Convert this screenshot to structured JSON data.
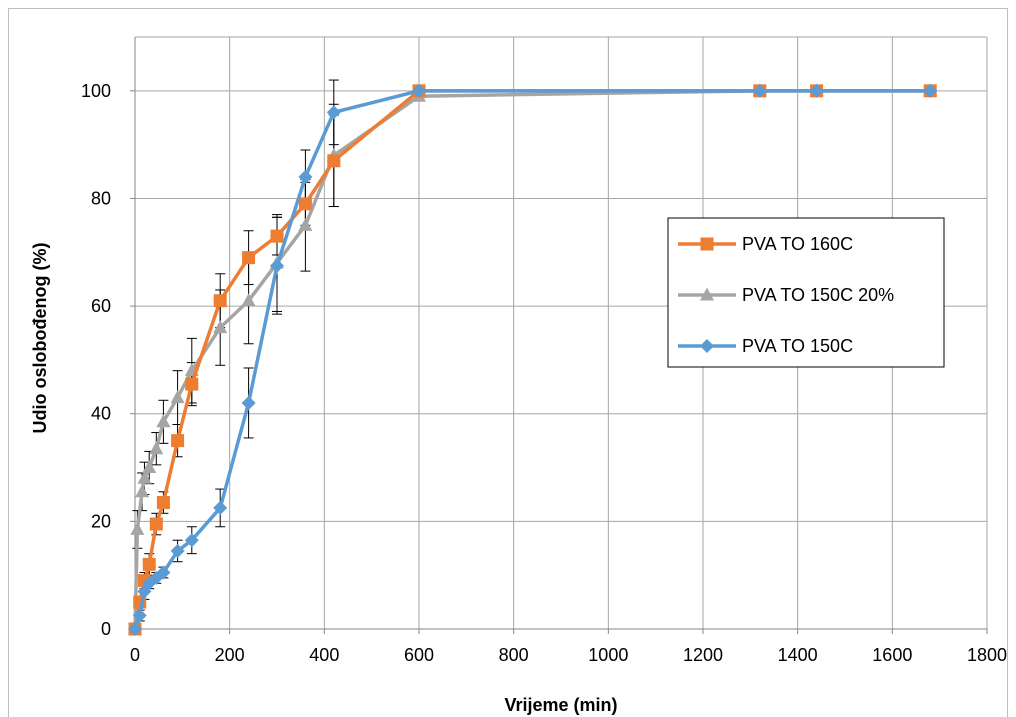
{
  "chart_data": {
    "type": "line",
    "title": "",
    "xlabel": "Vrijeme (min)",
    "ylabel": "Udio oslobođenog (%)",
    "xlim": [
      0,
      1800
    ],
    "ylim": [
      0,
      110
    ],
    "x_ticks": [
      0,
      200,
      400,
      600,
      800,
      1000,
      1200,
      1400,
      1600,
      1800
    ],
    "x_tick_labels": [
      "0",
      "200",
      "400",
      "600",
      "800",
      "1000",
      "1200",
      "1400",
      "1600",
      "1800"
    ],
    "y_ticks": [
      0,
      20,
      40,
      60,
      80,
      100
    ],
    "y_tick_labels": [
      "0",
      "20",
      "40",
      "60",
      "80",
      "100"
    ],
    "grid": true,
    "legend_position": "right",
    "series": [
      {
        "name": "PVA TO 160C",
        "color": "#ed7d31",
        "marker": "square",
        "x": [
          0,
          10,
          20,
          30,
          45,
          60,
          90,
          120,
          180,
          240,
          300,
          360,
          420,
          600,
          1320,
          1440,
          1680
        ],
        "y": [
          0,
          5,
          9,
          12,
          19.5,
          23.5,
          35,
          45.5,
          61,
          69,
          73,
          79,
          87,
          100,
          100,
          100,
          100
        ],
        "err": [
          0,
          1,
          1.5,
          2,
          2,
          2,
          3,
          4,
          5,
          5,
          3.5,
          4,
          8.5,
          0,
          0,
          0,
          0
        ]
      },
      {
        "name": "PVA TO 150C 20%",
        "color": "#a5a5a5",
        "marker": "triangle",
        "x": [
          0,
          5,
          15,
          20,
          30,
          45,
          60,
          90,
          120,
          180,
          240,
          300,
          360,
          420,
          600,
          1320,
          1440,
          1680
        ],
        "y": [
          0,
          18.5,
          25.5,
          28,
          30,
          33.5,
          38.5,
          43,
          48,
          56,
          61,
          68,
          75,
          88,
          99,
          100,
          100,
          100
        ],
        "err": [
          0,
          3.5,
          3.5,
          3,
          3,
          3,
          4,
          5,
          6,
          7,
          8,
          9,
          8.5,
          9.5,
          0,
          0,
          0,
          0
        ]
      },
      {
        "name": "PVA TO 150C",
        "color": "#5b9bd5",
        "marker": "diamond",
        "x": [
          0,
          10,
          20,
          30,
          45,
          60,
          90,
          120,
          180,
          240,
          300,
          360,
          420,
          600,
          1320,
          1440,
          1680
        ],
        "y": [
          0,
          2.5,
          7,
          8.5,
          9.5,
          10.5,
          14.5,
          16.5,
          22.5,
          42,
          67.5,
          84,
          96,
          100,
          100,
          100,
          100
        ],
        "err": [
          0,
          1,
          1.5,
          1,
          1,
          1,
          2,
          2.5,
          3.5,
          6.5,
          9,
          5,
          6,
          0,
          0,
          0,
          0
        ]
      }
    ]
  }
}
